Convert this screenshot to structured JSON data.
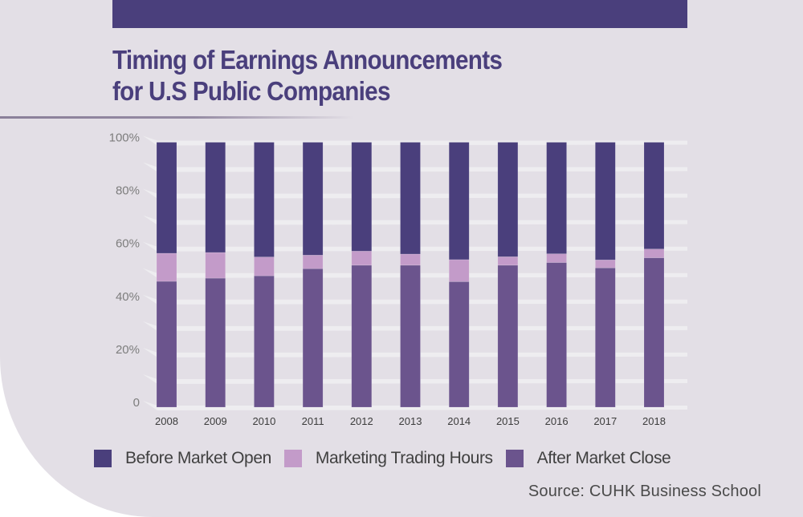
{
  "header": {
    "title_line1": "Timing of Earnings Announcements",
    "title_line2": "for U.S Public Companies"
  },
  "colors": {
    "brand": "#4a3f7c",
    "before_market_open": "#4a3f7c",
    "marketing_trading_hours": "#c39bc9",
    "after_market_close": "#6b548d",
    "background": "#e3dfe6"
  },
  "source": "Source: CUHK Business School",
  "chart_data": {
    "type": "bar",
    "stacked": true,
    "normalized_percent": true,
    "title": "Timing of Earnings Announcements for U.S Public Companies",
    "xlabel": "",
    "ylabel": "",
    "ylim": [
      0,
      100
    ],
    "yticks": [
      0,
      20,
      40,
      60,
      80,
      100
    ],
    "ytick_labels": [
      "0",
      "20%",
      "40%",
      "60%",
      "80%",
      "100%"
    ],
    "grid": true,
    "legend_position": "bottom",
    "categories": [
      "2008",
      "2009",
      "2010",
      "2011",
      "2012",
      "2013",
      "2014",
      "2015",
      "2016",
      "2017",
      "2018"
    ],
    "series": [
      {
        "name": "After Market Close",
        "color": "#6b548d",
        "values": [
          47.5,
          48.7,
          49.6,
          52.3,
          53.6,
          53.6,
          47.4,
          53.6,
          54.6,
          52.6,
          56.4
        ]
      },
      {
        "name": "Marketing Trading Hours",
        "color": "#c39bc9",
        "values": [
          10.6,
          9.7,
          7.1,
          5.1,
          5.3,
          4.2,
          8.3,
          3.2,
          3.3,
          3.0,
          3.3
        ]
      },
      {
        "name": "Before Market Open",
        "color": "#4a3f7c",
        "values": [
          41.9,
          41.6,
          43.3,
          42.6,
          41.1,
          42.2,
          44.3,
          43.2,
          42.1,
          44.4,
          40.3
        ]
      }
    ],
    "legend": [
      "Before Market Open",
      "Marketing Trading Hours",
      "After Market Close"
    ]
  }
}
